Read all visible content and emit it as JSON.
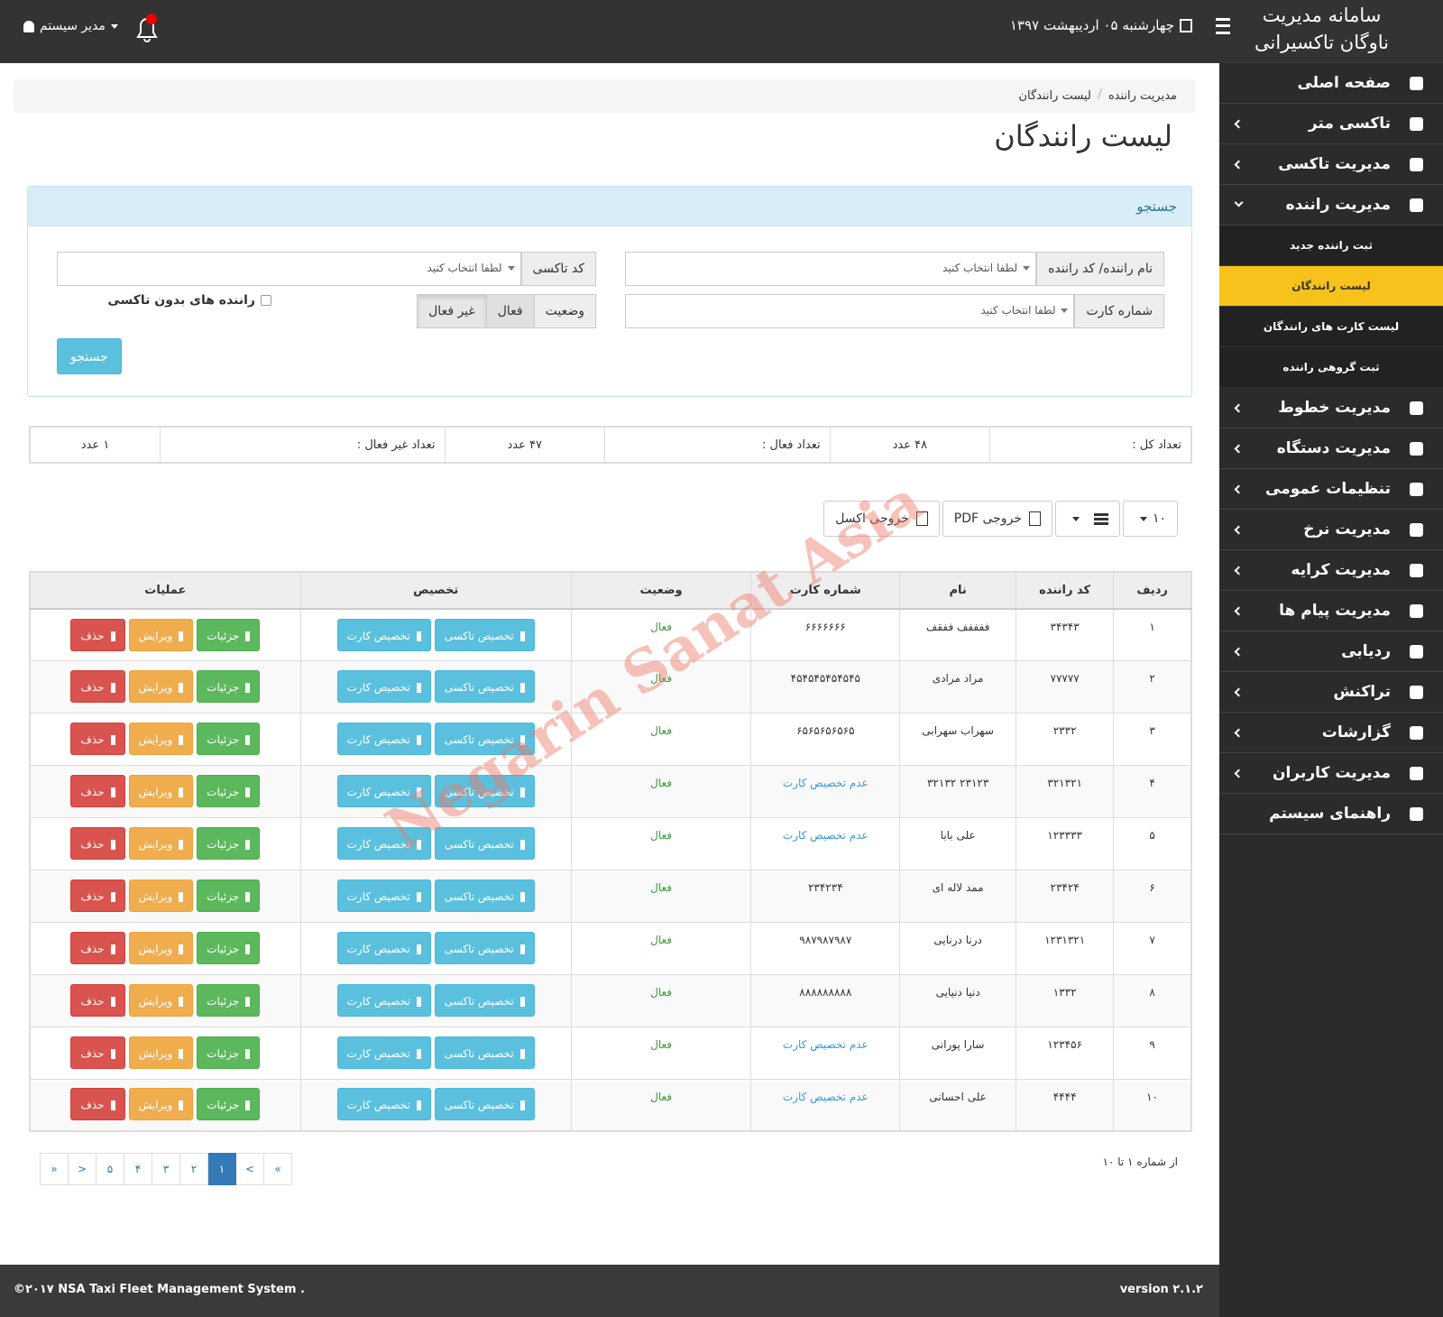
{
  "header": {
    "title_line1": "سامانه مدیریت",
    "title_line2": "ناوگان تاکسیرانی",
    "date": "چهارشنبه ۰۵ اردیبهشت ۱۳۹۷",
    "user": "مدیر سیستم"
  },
  "sidebar": {
    "items": [
      {
        "label": "صفحه اصلی",
        "expandable": false
      },
      {
        "label": "تاکسی متر",
        "expandable": true
      },
      {
        "label": "مدیریت تاکسی",
        "expandable": true
      },
      {
        "label": "مدیریت راننده",
        "expandable": true,
        "children": [
          {
            "label": "ثبت راننده جدید",
            "active": false
          },
          {
            "label": "لیست رانندگان",
            "active": true
          },
          {
            "label": "لیست کارت های رانندگان",
            "active": false
          },
          {
            "label": "ثبت گروهی راننده",
            "active": false
          }
        ]
      },
      {
        "label": "مدیریت خطوط",
        "expandable": true
      },
      {
        "label": "مدیریت دستگاه",
        "expandable": true
      },
      {
        "label": "تنظیمات عمومی",
        "expandable": true
      },
      {
        "label": "مدیریت نرخ",
        "expandable": true
      },
      {
        "label": "مدیریت کرایه",
        "expandable": true
      },
      {
        "label": "مدیریت پیام ها",
        "expandable": true
      },
      {
        "label": "ردیابی",
        "expandable": true
      },
      {
        "label": "تراکنش",
        "expandable": true
      },
      {
        "label": "گزارشات",
        "expandable": true
      },
      {
        "label": "مدیریت کاربران",
        "expandable": true
      },
      {
        "label": "راهنمای سیستم",
        "expandable": false
      }
    ]
  },
  "breadcrumb": [
    "مدیریت راننده",
    "لیست رانندگان"
  ],
  "page_title": "لیست رانندگان",
  "search": {
    "heading": "جستجو",
    "driver": {
      "label": "نام راننده/ کد راننده",
      "placeholder": "لطفا انتخاب کنید"
    },
    "taxi": {
      "label": "کد تاکسی",
      "placeholder": "لطفا انتخاب کنید"
    },
    "card": {
      "label": "شماره کارت",
      "placeholder": "لطفا انتخاب کنید"
    },
    "status_label": "وضعیت",
    "status_options": [
      "فعال",
      "غیر فعال"
    ],
    "no_taxi_label": "راننده های بدون تاکسی",
    "button": "جستجو"
  },
  "stats": [
    {
      "label": "تعداد کل :",
      "value": "۴۸ عدد"
    },
    {
      "label": "تعداد فعال :",
      "value": "۴۷ عدد"
    },
    {
      "label": "تعداد غیر فعال :",
      "value": "۱ عدد"
    }
  ],
  "toolbar": {
    "page_size": "۱۰",
    "pdf": "خروجی PDF",
    "excel": "خروجی اکسل"
  },
  "table": {
    "headers": [
      "ردیف",
      "کد راننده",
      "نام",
      "شماره کارت",
      "وضعیت",
      "تخصیص",
      "عملیات"
    ],
    "buttons": {
      "assign_taxi": "تخصیص تاکسی",
      "assign_card": "تخصیص کارت",
      "details": "جزئیات",
      "edit": "ویرایش",
      "delete": "حذف"
    },
    "rows": [
      {
        "cells": [
          "۱",
          "۳۴۳۴۳",
          "ففففف ففقف",
          "۶۶۶۶۶۶۶",
          "فعال"
        ],
        "card_assigned": true
      },
      {
        "cells": [
          "۲",
          "۷۷۷۷۷",
          "مراد مرادی",
          "۴۵۴۵۴۵۴۵۴۵۴۵",
          "فعال"
        ],
        "card_assigned": true
      },
      {
        "cells": [
          "۳",
          "۲۳۳۲",
          "سهراب سهرابی",
          "۶۵۶۵۶۵۶۵۶۵",
          "فعال"
        ],
        "card_assigned": true
      },
      {
        "cells": [
          "۴",
          "۳۲۱۳۲۱",
          "۲۳۱۲۳ ۳۲۱۳۲",
          "عدم تخصیص کارت",
          "فعال"
        ],
        "card_assigned": false
      },
      {
        "cells": [
          "۵",
          "۱۲۳۳۳۳",
          "علی بابا",
          "عدم تخصیص کارت",
          "فعال"
        ],
        "card_assigned": false
      },
      {
        "cells": [
          "۶",
          "۲۳۴۲۴",
          "ممد لاله ای",
          "۲۳۴۲۳۴",
          "فعال"
        ],
        "card_assigned": true
      },
      {
        "cells": [
          "۷",
          "۱۲۳۱۳۲۱",
          "درنا درنایی",
          "۹۸۷۹۸۷۹۸۷",
          "فعال"
        ],
        "card_assigned": true
      },
      {
        "cells": [
          "۸",
          "۱۳۳۲",
          "دنیا دنیایی",
          "۸۸۸۸۸۸۸۸۸",
          "فعال"
        ],
        "card_assigned": true
      },
      {
        "cells": [
          "۹",
          "۱۲۳۴۵۶",
          "سارا پورانی",
          "عدم تخصیص کارت",
          "فعال"
        ],
        "card_assigned": false
      },
      {
        "cells": [
          "۱۰",
          "۴۴۴۴",
          "علی احسانی",
          "عدم تخصیص کارت",
          "فعال"
        ],
        "card_assigned": false
      }
    ]
  },
  "pagination": {
    "links": [
      "»",
      ">",
      "۱",
      "۲",
      "۳",
      "۴",
      "۵",
      "<",
      "«"
    ],
    "active": 2
  },
  "range_text": "از شماره ۱ تا ۱۰",
  "footer": {
    "copyright": "©۲۰۱۷ NSA Taxi Fleet Management System .",
    "version": "version ۲.۱.۲"
  },
  "watermark": "Negarin Sanat Asia"
}
